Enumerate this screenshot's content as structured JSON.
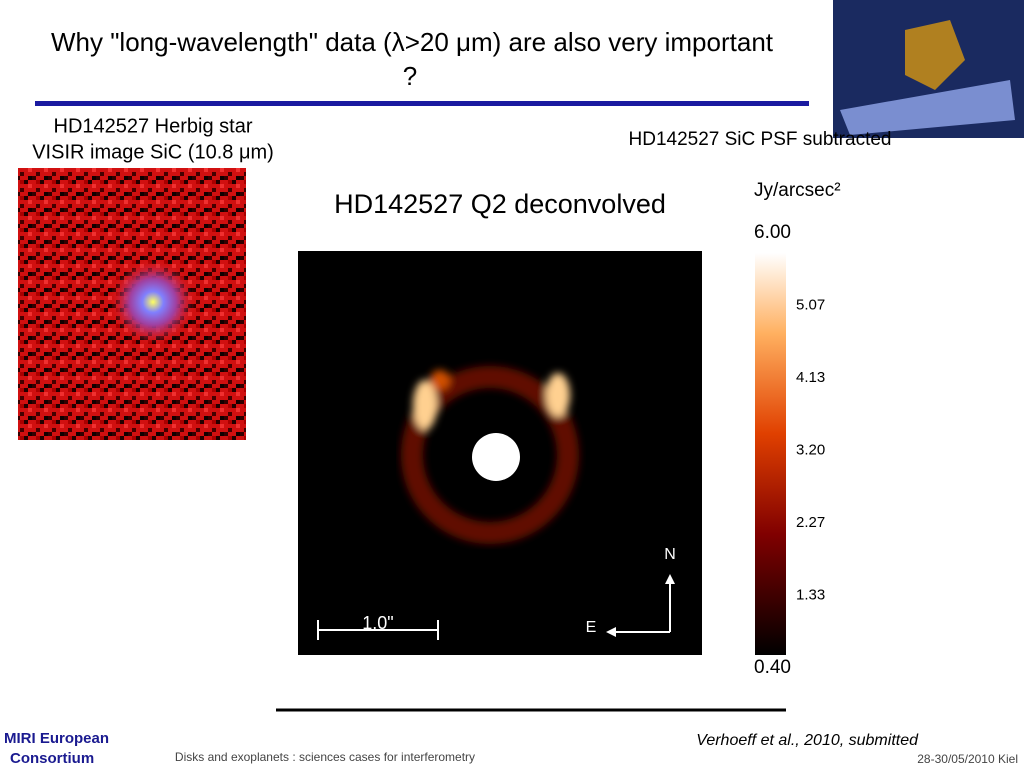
{
  "title": {
    "line1": "Why \"long-wavelength\" data (λ>20 μm) are also very important",
    "line2": "?"
  },
  "left_panel": {
    "caption_line1": "HD142527 Herbig star",
    "caption_line2": "VISIR image SiC (10.8 μm)"
  },
  "right_panel": {
    "header": "HD142527 SiC PSF subtracted",
    "image_title": "HD142527 Q2 deconvolved",
    "scale_label": "1.0\"",
    "north": "N",
    "east": "E",
    "colorbar": {
      "unit": "Jy/arcsec²",
      "labels": [
        "6.00",
        "5.07",
        "4.13",
        "3.20",
        "2.27",
        "1.33",
        "0.40"
      ]
    }
  },
  "footer": {
    "logo_line1": "MIRI European",
    "logo_line2": "Consortium",
    "conference": "Disks and exoplanets : sciences cases for interferometry",
    "reference": "Verhoeff et al., 2010, submitted",
    "date": "28-30/05/2010 Kiel"
  }
}
